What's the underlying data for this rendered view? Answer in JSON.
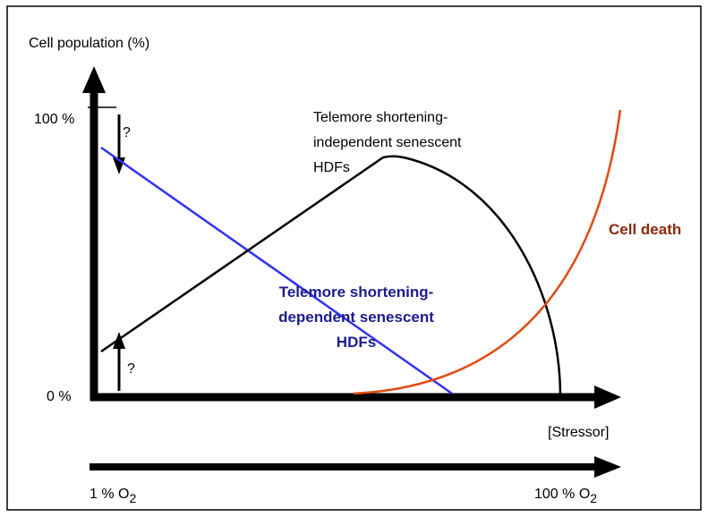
{
  "axes": {
    "y_label": "Cell population (%)",
    "y_top": "100 %",
    "y_bottom": "0 %",
    "x_label": "[Stressor]"
  },
  "question_marks": [
    "?",
    "?"
  ],
  "curves": {
    "independent": [
      "Telemore shortening-",
      "independent senescent",
      "HDFs"
    ],
    "dependent": [
      "Telemore shortening-",
      "dependent senescent",
      "HDFs"
    ],
    "death": "Cell death"
  },
  "o2_axis": {
    "start": {
      "text": "1 % O",
      "sub": "2"
    },
    "end": {
      "text": "100 % O",
      "sub": "2"
    }
  }
}
